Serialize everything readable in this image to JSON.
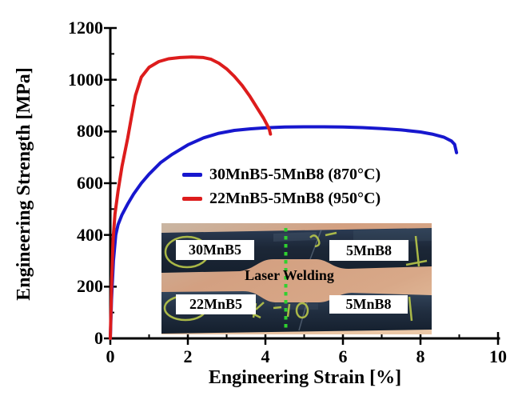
{
  "figure": {
    "background": "#ffffff",
    "axis_color": "#000000"
  },
  "chart_data": {
    "type": "line",
    "title": "",
    "xlabel": "Engineering Strain [%]",
    "ylabel": "Engineering Strength [MPa]",
    "xlim": [
      0,
      10
    ],
    "ylim": [
      0,
      1200
    ],
    "x_major_ticks": [
      0,
      2,
      4,
      6,
      8,
      10
    ],
    "x_minor_ticks": [
      1,
      3,
      5,
      7,
      9
    ],
    "y_major_ticks": [
      0,
      200,
      400,
      600,
      800,
      1000,
      1200
    ],
    "y_minor_ticks": [
      100,
      300,
      500,
      700,
      900,
      1100
    ],
    "grid": false,
    "legend_position": "inside-left-middle",
    "series": [
      {
        "name": "30MnB5-5MnB8 (870°C)",
        "color": "#1717ce",
        "points": [
          [
            0,
            0
          ],
          [
            0.03,
            150
          ],
          [
            0.08,
            300
          ],
          [
            0.14,
            400
          ],
          [
            0.2,
            440
          ],
          [
            0.3,
            478
          ],
          [
            0.45,
            520
          ],
          [
            0.6,
            558
          ],
          [
            0.8,
            600
          ],
          [
            1.0,
            635
          ],
          [
            1.3,
            680
          ],
          [
            1.6,
            712
          ],
          [
            2.0,
            748
          ],
          [
            2.4,
            775
          ],
          [
            2.8,
            793
          ],
          [
            3.2,
            804
          ],
          [
            3.6,
            810
          ],
          [
            4.0,
            814
          ],
          [
            4.5,
            817
          ],
          [
            5.0,
            818
          ],
          [
            5.5,
            818
          ],
          [
            6.0,
            817
          ],
          [
            6.5,
            815
          ],
          [
            7.0,
            811
          ],
          [
            7.5,
            806
          ],
          [
            8.0,
            798
          ],
          [
            8.3,
            790
          ],
          [
            8.6,
            778
          ],
          [
            8.8,
            763
          ],
          [
            8.88,
            750
          ],
          [
            8.93,
            718
          ]
        ]
      },
      {
        "name": "22MnB5-5MnB8 (950°C)",
        "color": "#dd1c1c",
        "points": [
          [
            0,
            0
          ],
          [
            0.03,
            200
          ],
          [
            0.07,
            380
          ],
          [
            0.12,
            480
          ],
          [
            0.2,
            570
          ],
          [
            0.3,
            665
          ],
          [
            0.45,
            775
          ],
          [
            0.55,
            860
          ],
          [
            0.65,
            940
          ],
          [
            0.8,
            1010
          ],
          [
            1.0,
            1048
          ],
          [
            1.25,
            1070
          ],
          [
            1.5,
            1081
          ],
          [
            1.8,
            1086
          ],
          [
            2.1,
            1088
          ],
          [
            2.4,
            1086
          ],
          [
            2.6,
            1079
          ],
          [
            2.8,
            1064
          ],
          [
            3.0,
            1042
          ],
          [
            3.2,
            1013
          ],
          [
            3.4,
            978
          ],
          [
            3.6,
            936
          ],
          [
            3.8,
            888
          ],
          [
            3.95,
            852
          ],
          [
            4.05,
            824
          ],
          [
            4.1,
            808
          ],
          [
            4.13,
            790
          ]
        ]
      }
    ]
  },
  "inset": {
    "labels": {
      "top_left": "30MnB5",
      "top_right": "5MnB8",
      "center": "Laser Welding",
      "bottom_left": "22MnB5",
      "bottom_right": "5MnB8"
    },
    "colors": {
      "background": "#d3a081",
      "specimen": "#1e2a3c",
      "weld_line": "#2fd12f",
      "marker": "#b9c84a",
      "label_background": "#ffffff"
    }
  }
}
